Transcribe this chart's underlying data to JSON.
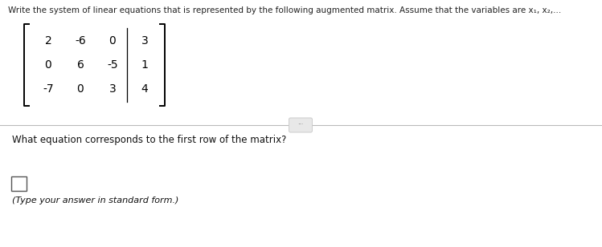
{
  "title_text": "Write the system of linear equations that is represented by the following augmented matrix. Assume that the variables are x₁, x₂,...",
  "matrix": [
    [
      "2",
      "-6",
      "0",
      "3"
    ],
    [
      "0",
      "6",
      "-5",
      "1"
    ],
    [
      "-7",
      "0",
      "3",
      "4"
    ]
  ],
  "augmented_col": 3,
  "question_text": "What equation corresponds to the first row of the matrix?",
  "answer_hint": "(Type your answer in standard form.)",
  "bg_color": "#f0eeeb",
  "text_color": "#111111",
  "divider_color": "#bbbbbb",
  "title_fontsize": 7.5,
  "matrix_fontsize": 10.0,
  "question_fontsize": 8.5,
  "hint_fontsize": 8.0
}
